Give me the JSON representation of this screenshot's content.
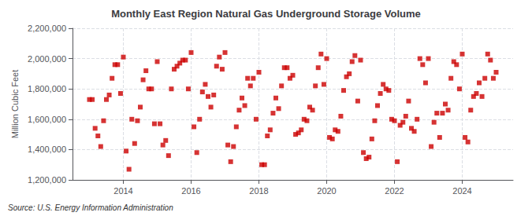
{
  "chart_data": {
    "type": "scatter",
    "title": "Monthly East Region Natural Gas Underground Storage Volume",
    "ylabel": "Million Cubic Feet",
    "annotation": "Source: U.S. Energy Information Administration",
    "color": "#cc0000",
    "marker": "square",
    "grid": true,
    "xlim": [
      2012.5,
      2025.5
    ],
    "xticks": [
      2014,
      2016,
      2018,
      2020,
      2022,
      2024
    ],
    "ylim": [
      1200000,
      2200000
    ],
    "yticks": [
      {
        "value": 1200000,
        "label": "1,200,000"
      },
      {
        "value": 1400000,
        "label": "1,400,000"
      },
      {
        "value": 1600000,
        "label": "1,600,000"
      },
      {
        "value": 1800000,
        "label": "1,800,000"
      },
      {
        "value": 2000000,
        "label": "2,000,000"
      },
      {
        "value": 2200000,
        "label": "2,200,000"
      }
    ],
    "x": [
      2013.0,
      2013.083,
      2013.167,
      2013.25,
      2013.333,
      2013.417,
      2013.5,
      2013.583,
      2013.667,
      2013.75,
      2013.833,
      2013.917,
      2014.0,
      2014.083,
      2014.167,
      2014.25,
      2014.333,
      2014.417,
      2014.5,
      2014.583,
      2014.667,
      2014.75,
      2014.833,
      2014.917,
      2015.0,
      2015.083,
      2015.167,
      2015.25,
      2015.333,
      2015.417,
      2015.5,
      2015.583,
      2015.667,
      2015.75,
      2015.833,
      2015.917,
      2016.0,
      2016.083,
      2016.167,
      2016.25,
      2016.333,
      2016.417,
      2016.5,
      2016.583,
      2016.667,
      2016.75,
      2016.833,
      2016.917,
      2017.0,
      2017.083,
      2017.167,
      2017.25,
      2017.333,
      2017.417,
      2017.5,
      2017.583,
      2017.667,
      2017.75,
      2017.833,
      2017.917,
      2018.0,
      2018.083,
      2018.167,
      2018.25,
      2018.333,
      2018.417,
      2018.5,
      2018.583,
      2018.667,
      2018.75,
      2018.833,
      2018.917,
      2019.0,
      2019.083,
      2019.167,
      2019.25,
      2019.333,
      2019.417,
      2019.5,
      2019.583,
      2019.667,
      2019.75,
      2019.833,
      2019.917,
      2020.0,
      2020.083,
      2020.167,
      2020.25,
      2020.333,
      2020.417,
      2020.5,
      2020.583,
      2020.667,
      2020.75,
      2020.833,
      2020.917,
      2021.0,
      2021.083,
      2021.167,
      2021.25,
      2021.333,
      2021.417,
      2021.5,
      2021.583,
      2021.667,
      2021.75,
      2021.833,
      2021.917,
      2022.0,
      2022.083,
      2022.167,
      2022.25,
      2022.333,
      2022.417,
      2022.5,
      2022.583,
      2022.667,
      2022.75,
      2022.833,
      2022.917,
      2023.0,
      2023.083,
      2023.167,
      2023.25,
      2023.333,
      2023.417,
      2023.5,
      2023.583,
      2023.667,
      2023.75,
      2023.833,
      2023.917,
      2024.0,
      2024.083,
      2024.167,
      2024.25,
      2024.333,
      2024.417,
      2024.5,
      2024.583,
      2024.667,
      2024.75,
      2024.833,
      2024.917,
      2025.0
    ],
    "values": [
      1730000,
      1730000,
      1540000,
      1490000,
      1420000,
      1590000,
      1730000,
      1760000,
      1870000,
      1960000,
      1960000,
      1770000,
      2010000,
      1390000,
      1270000,
      1600000,
      1440000,
      1590000,
      1680000,
      1860000,
      1920000,
      1800000,
      1800000,
      1570000,
      1980000,
      1570000,
      1430000,
      1460000,
      1360000,
      1800000,
      1930000,
      1950000,
      1970000,
      1990000,
      1990000,
      1800000,
      2040000,
      1550000,
      1380000,
      1600000,
      1780000,
      1830000,
      1750000,
      1680000,
      1760000,
      1950000,
      2010000,
      1930000,
      2040000,
      1430000,
      1320000,
      1420000,
      1550000,
      1660000,
      1740000,
      1690000,
      1870000,
      1820000,
      1870000,
      1600000,
      1910000,
      1300000,
      1300000,
      1490000,
      1530000,
      1640000,
      1740000,
      1670000,
      1820000,
      1940000,
      1940000,
      1870000,
      1890000,
      1500000,
      1510000,
      1530000,
      1600000,
      1590000,
      1680000,
      1660000,
      1820000,
      1940000,
      2030000,
      1830000,
      2000000,
      1480000,
      1470000,
      1530000,
      1520000,
      1620000,
      1790000,
      1880000,
      1900000,
      1980000,
      2020000,
      1720000,
      1990000,
      1380000,
      1340000,
      1350000,
      1470000,
      1590000,
      1690000,
      1770000,
      1830000,
      1800000,
      1790000,
      1600000,
      1590000,
      1320000,
      1560000,
      1580000,
      1620000,
      1720000,
      1540000,
      1520000,
      1600000,
      2000000,
      1960000,
      1840000,
      2000000,
      1420000,
      1580000,
      1640000,
      1480000,
      1640000,
      1700000,
      1660000,
      1870000,
      1980000,
      1960000,
      1800000,
      2030000,
      1480000,
      1450000,
      1660000,
      1750000,
      1770000,
      1840000,
      1750000,
      1870000,
      2030000,
      1990000,
      1870000,
      1910000
    ]
  }
}
